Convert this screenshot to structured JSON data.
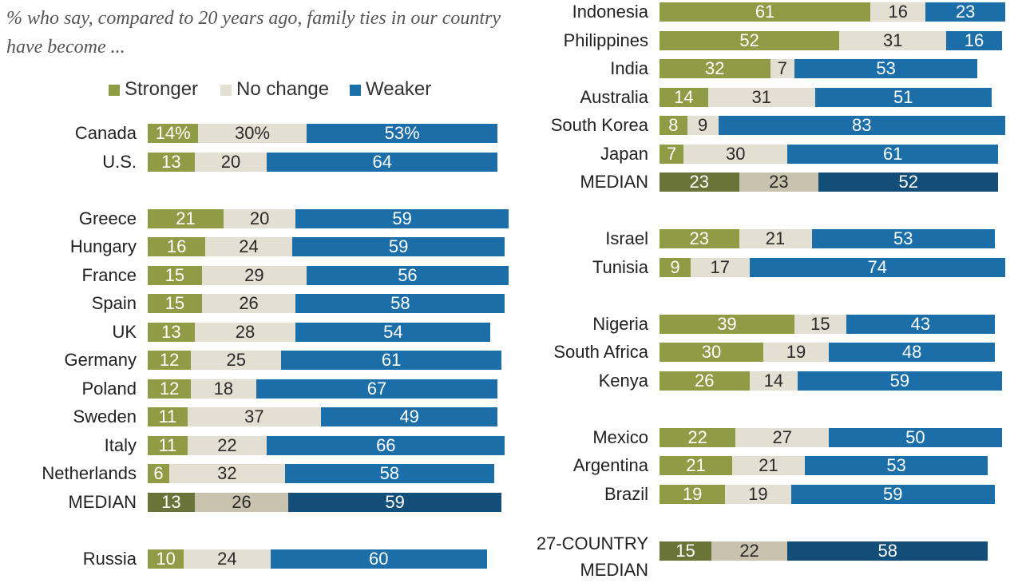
{
  "colors": {
    "stronger": "#8f9b45",
    "nochange": "#e3dfd3",
    "weaker": "#1b6ea8",
    "median_stronger": "#6b7438",
    "median_nochange": "#c9c2ae",
    "median_weaker": "#124e77"
  },
  "chart_data": {
    "type": "bar",
    "orientation": "horizontal",
    "stacked": true,
    "title": "% who say, compared to 20 years ago, family ties in our country have become ...",
    "legend": [
      "Stronger",
      "No change",
      "Weaker"
    ],
    "legend_position": "top-left",
    "groups": [
      {
        "column": "left",
        "rows": [
          {
            "label": "Canada",
            "values": [
              14,
              30,
              53
            ],
            "texts": [
              "14%",
              "30%",
              "53%"
            ]
          },
          {
            "label": "U.S.",
            "values": [
              13,
              20,
              64
            ]
          }
        ]
      },
      {
        "column": "left",
        "rows": [
          {
            "label": "Greece",
            "values": [
              21,
              20,
              59
            ]
          },
          {
            "label": "Hungary",
            "values": [
              16,
              24,
              59
            ]
          },
          {
            "label": "France",
            "values": [
              15,
              29,
              56
            ]
          },
          {
            "label": "Spain",
            "values": [
              15,
              26,
              58
            ]
          },
          {
            "label": "UK",
            "values": [
              13,
              28,
              54
            ]
          },
          {
            "label": "Germany",
            "values": [
              12,
              25,
              61
            ]
          },
          {
            "label": "Poland",
            "values": [
              12,
              18,
              67
            ]
          },
          {
            "label": "Sweden",
            "values": [
              11,
              37,
              49
            ]
          },
          {
            "label": "Italy",
            "values": [
              11,
              22,
              66
            ]
          },
          {
            "label": "Netherlands",
            "values": [
              6,
              32,
              58
            ]
          },
          {
            "label": "MEDIAN",
            "values": [
              13,
              26,
              59
            ],
            "median": true
          }
        ]
      },
      {
        "column": "left",
        "rows": [
          {
            "label": "Russia",
            "values": [
              10,
              24,
              60
            ]
          }
        ]
      },
      {
        "column": "right",
        "rows": [
          {
            "label": "Indonesia",
            "values": [
              61,
              16,
              23
            ]
          },
          {
            "label": "Philippines",
            "values": [
              52,
              31,
              16
            ]
          },
          {
            "label": "India",
            "values": [
              32,
              7,
              53
            ]
          },
          {
            "label": "Australia",
            "values": [
              14,
              31,
              51
            ]
          },
          {
            "label": "South Korea",
            "values": [
              8,
              9,
              83
            ]
          },
          {
            "label": "Japan",
            "values": [
              7,
              30,
              61
            ]
          },
          {
            "label": "MEDIAN",
            "values": [
              23,
              23,
              52
            ],
            "median": true
          }
        ]
      },
      {
        "column": "right",
        "rows": [
          {
            "label": "Israel",
            "values": [
              23,
              21,
              53
            ]
          },
          {
            "label": "Tunisia",
            "values": [
              9,
              17,
              74
            ]
          }
        ]
      },
      {
        "column": "right",
        "rows": [
          {
            "label": "Nigeria",
            "values": [
              39,
              15,
              43
            ]
          },
          {
            "label": "South Africa",
            "values": [
              30,
              19,
              48
            ]
          },
          {
            "label": "Kenya",
            "values": [
              26,
              14,
              59
            ]
          }
        ]
      },
      {
        "column": "right",
        "rows": [
          {
            "label": "Mexico",
            "values": [
              22,
              27,
              50
            ]
          },
          {
            "label": "Argentina",
            "values": [
              21,
              21,
              53
            ]
          },
          {
            "label": "Brazil",
            "values": [
              19,
              19,
              59
            ]
          }
        ]
      },
      {
        "column": "right",
        "rows": [
          {
            "label": "27-COUNTRY MEDIAN",
            "label_lines": [
              "27-COUNTRY",
              "MEDIAN"
            ],
            "values": [
              15,
              22,
              58
            ],
            "median": true
          }
        ]
      }
    ]
  }
}
